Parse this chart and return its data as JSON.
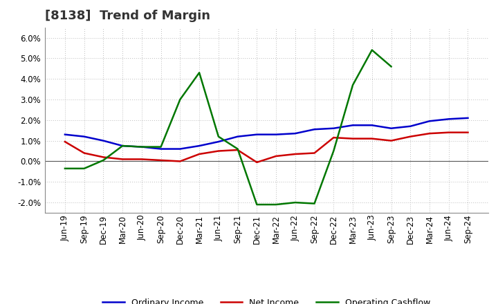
{
  "title": "[8138]  Trend of Margin",
  "x_labels": [
    "Jun-19",
    "Sep-19",
    "Dec-19",
    "Mar-20",
    "Jun-20",
    "Sep-20",
    "Dec-20",
    "Mar-21",
    "Jun-21",
    "Sep-21",
    "Dec-21",
    "Mar-22",
    "Jun-22",
    "Sep-22",
    "Dec-22",
    "Mar-23",
    "Jun-23",
    "Sep-23",
    "Dec-23",
    "Mar-24",
    "Jun-24",
    "Sep-24"
  ],
  "ordinary_income": [
    1.3,
    1.2,
    1.0,
    0.75,
    0.7,
    0.6,
    0.6,
    0.75,
    0.95,
    1.2,
    1.3,
    1.3,
    1.35,
    1.55,
    1.6,
    1.75,
    1.75,
    1.6,
    1.7,
    1.95,
    2.05,
    2.1
  ],
  "net_income": [
    0.95,
    0.4,
    0.2,
    0.1,
    0.1,
    0.05,
    0.0,
    0.35,
    0.5,
    0.55,
    -0.05,
    0.25,
    0.35,
    0.4,
    1.15,
    1.1,
    1.1,
    1.0,
    1.2,
    1.35,
    1.4,
    1.4
  ],
  "operating_cashflow": [
    -0.35,
    -0.35,
    0.05,
    0.75,
    0.7,
    0.7,
    3.0,
    4.3,
    1.2,
    0.6,
    -2.1,
    -2.1,
    -2.0,
    -2.05,
    0.5,
    3.7,
    5.4,
    4.6,
    null,
    null,
    null,
    null
  ],
  "color_ordinary": "#0000cc",
  "color_net": "#cc0000",
  "color_cashflow": "#007700",
  "ylim_min": -2.5,
  "ylim_max": 6.5,
  "yticks": [
    -2.0,
    -1.0,
    0.0,
    1.0,
    2.0,
    3.0,
    4.0,
    5.0,
    6.0
  ],
  "background_color": "#ffffff",
  "grid_color": "#bbbbbb",
  "title_fontsize": 13,
  "tick_fontsize": 8.5,
  "legend_fontsize": 9
}
